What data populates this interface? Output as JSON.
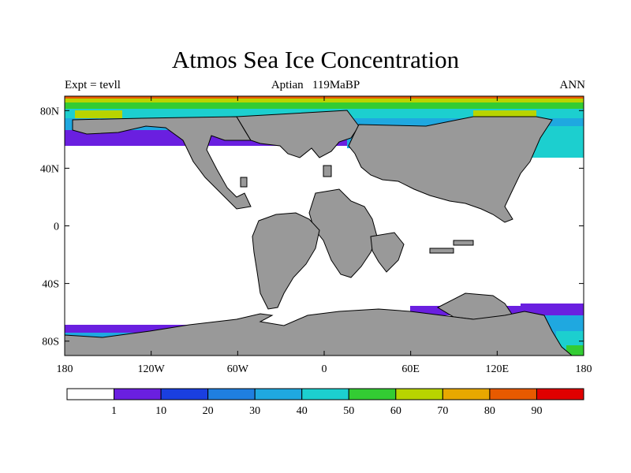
{
  "title": "Atmos Sea Ice Concentration",
  "subtitle": "Aptian   119MaBP",
  "left_label": "Expt = tevll",
  "right_label": "ANN",
  "lat_ticks": [
    "80N",
    "40N",
    "0",
    "40S",
    "80S"
  ],
  "lon_ticks": [
    "180",
    "120W",
    "60W",
    "0",
    "60E",
    "120E",
    "180"
  ],
  "colorbar": {
    "labels": [
      "1",
      "10",
      "20",
      "30",
      "40",
      "50",
      "60",
      "70",
      "80",
      "90"
    ],
    "colors": [
      "#ffffff",
      "#6a1fe0",
      "#1a3fe0",
      "#1f7fe0",
      "#1fa8e0",
      "#1ccfcf",
      "#33cc33",
      "#b8d400",
      "#e8a800",
      "#e85a00",
      "#e00000"
    ]
  },
  "land_color": "#999999"
}
